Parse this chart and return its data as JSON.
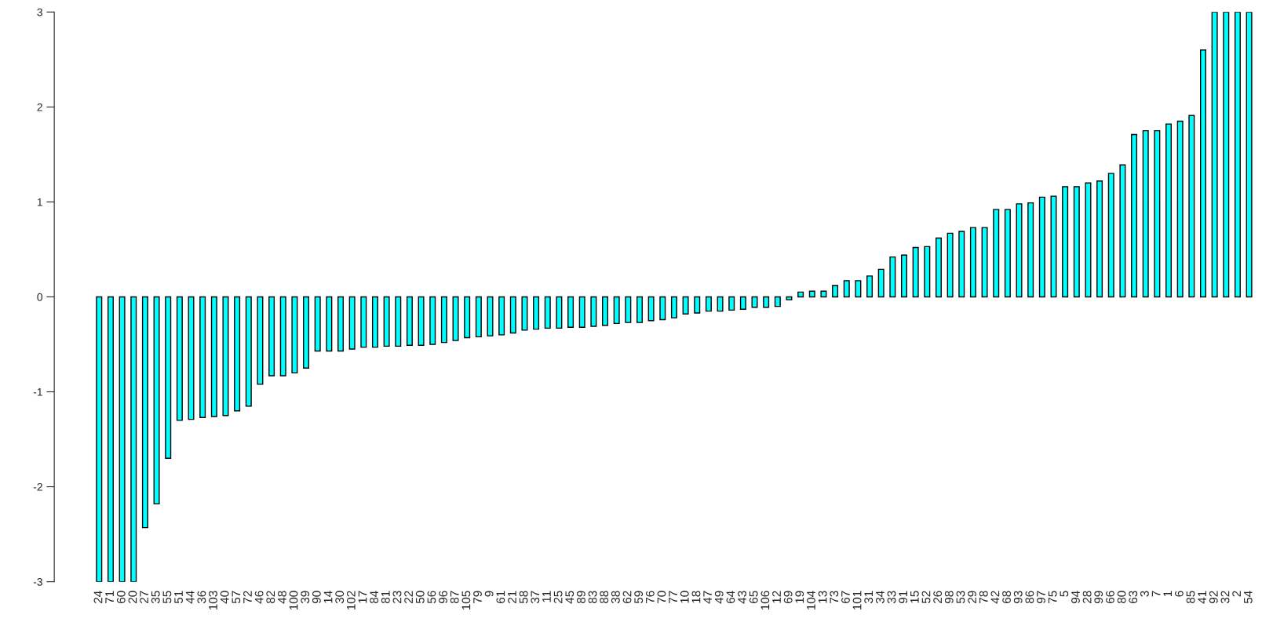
{
  "chart_data": {
    "type": "bar",
    "categories": [
      "24",
      "71",
      "60",
      "20",
      "27",
      "35",
      "55",
      "51",
      "44",
      "36",
      "103",
      "40",
      "57",
      "72",
      "46",
      "82",
      "48",
      "100",
      "39",
      "90",
      "14",
      "30",
      "102",
      "17",
      "84",
      "81",
      "23",
      "22",
      "50",
      "56",
      "96",
      "87",
      "105",
      "79",
      "9",
      "61",
      "21",
      "58",
      "37",
      "11",
      "25",
      "45",
      "89",
      "83",
      "88",
      "38",
      "62",
      "59",
      "76",
      "70",
      "77",
      "10",
      "18",
      "47",
      "49",
      "64",
      "43",
      "65",
      "106",
      "12",
      "69",
      "19",
      "104",
      "13",
      "73",
      "67",
      "101",
      "31",
      "34",
      "33",
      "91",
      "15",
      "52",
      "26",
      "98",
      "53",
      "29",
      "78",
      "42",
      "68",
      "93",
      "86",
      "97",
      "75",
      "5",
      "94",
      "28",
      "99",
      "66",
      "80",
      "63",
      "3",
      "7",
      "1",
      "6",
      "85",
      "41",
      "92",
      "32",
      "2",
      "54"
    ],
    "values": [
      -3,
      -3,
      -3,
      -3,
      -2.43,
      -2.18,
      -1.7,
      -1.3,
      -1.29,
      -1.27,
      -1.26,
      -1.25,
      -1.2,
      -1.15,
      -0.92,
      -0.83,
      -0.83,
      -0.8,
      -0.75,
      -0.57,
      -0.57,
      -0.57,
      -0.55,
      -0.53,
      -0.53,
      -0.52,
      -0.52,
      -0.51,
      -0.51,
      -0.5,
      -0.48,
      -0.46,
      -0.43,
      -0.42,
      -0.41,
      -0.4,
      -0.38,
      -0.35,
      -0.34,
      -0.33,
      -0.33,
      -0.32,
      -0.32,
      -0.31,
      -0.3,
      -0.28,
      -0.27,
      -0.27,
      -0.25,
      -0.24,
      -0.22,
      -0.18,
      -0.17,
      -0.15,
      -0.15,
      -0.14,
      -0.13,
      -0.11,
      -0.11,
      -0.1,
      -0.03,
      0.05,
      0.06,
      0.06,
      0.12,
      0.17,
      0.17,
      0.22,
      0.29,
      0.42,
      0.44,
      0.52,
      0.53,
      0.62,
      0.67,
      0.69,
      0.73,
      0.73,
      0.92,
      0.92,
      0.98,
      0.99,
      1.05,
      1.06,
      1.16,
      1.16,
      1.2,
      1.22,
      1.3,
      1.39,
      1.71,
      1.75,
      1.75,
      1.82,
      1.85,
      1.91,
      2.6,
      3,
      3,
      3,
      3
    ],
    "color": "#00ffff",
    "ylim": [
      -3,
      3
    ],
    "yticks": [
      -3,
      -2,
      -1,
      0,
      1,
      2,
      3
    ],
    "grid": false
  }
}
